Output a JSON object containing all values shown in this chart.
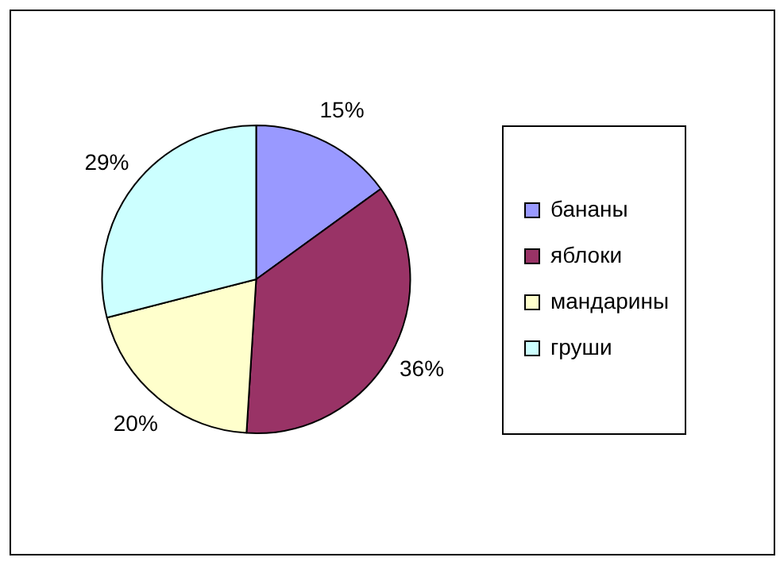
{
  "chart_data": {
    "type": "pie",
    "categories": [
      "бананы",
      "яблоки",
      "мандарины",
      "груши"
    ],
    "values": [
      15,
      36,
      20,
      29
    ],
    "colors": [
      "#9999ff",
      "#993366",
      "#ffffcc",
      "#ccffff"
    ],
    "value_labels": [
      "15%",
      "36%",
      "20%",
      "29%"
    ],
    "legend": "right"
  }
}
